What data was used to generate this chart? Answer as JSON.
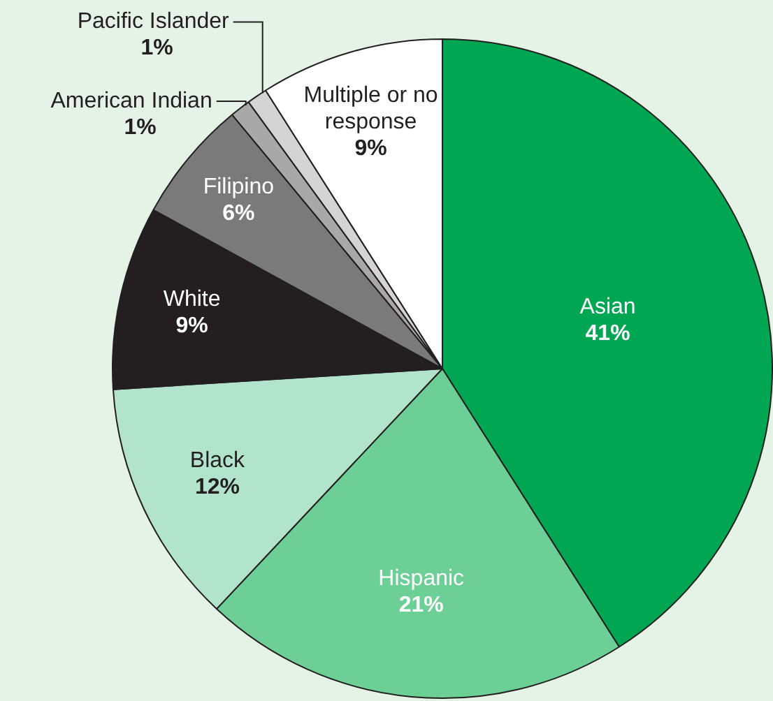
{
  "chart_data": {
    "type": "pie",
    "categories": [
      "Asian",
      "Hispanic",
      "Black",
      "White",
      "Filipino",
      "American Indian",
      "Pacific Islander",
      "Multiple or no response"
    ],
    "values": [
      41,
      21,
      12,
      9,
      6,
      1,
      1,
      9
    ],
    "colors": [
      "#00a651",
      "#6ccf96",
      "#b2e4cc",
      "#231f20",
      "#7a7a7a",
      "#a8a8a8",
      "#d4d4d4",
      "#ffffff"
    ],
    "value_labels": [
      "41%",
      "21%",
      "12%",
      "9%",
      "6%",
      "1%",
      "1%",
      "9%"
    ],
    "legend": false
  }
}
